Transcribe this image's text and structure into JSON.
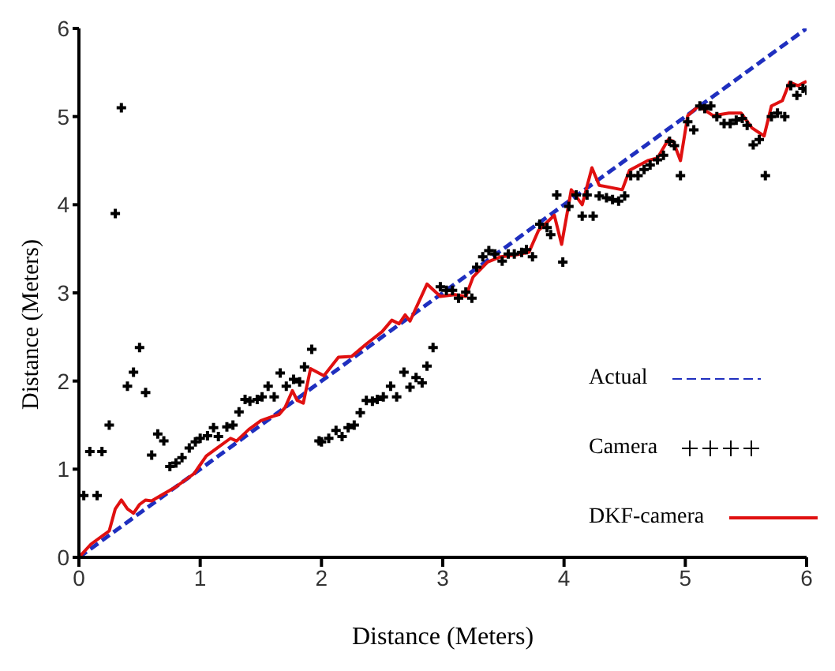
{
  "chart_data": {
    "type": "line",
    "xlabel": "Distance (Meters)",
    "ylabel": "Distance (Meters)",
    "xlim": [
      0,
      6
    ],
    "ylim": [
      0,
      6
    ],
    "xticks": [
      0,
      1,
      2,
      3,
      4,
      5,
      6
    ],
    "yticks": [
      0,
      1,
      2,
      3,
      4,
      5,
      6
    ],
    "grid": false,
    "legend": "bottom right",
    "series": [
      {
        "name": "Actual",
        "type": "line",
        "color": "#1f2fbf",
        "line_style": "dashed",
        "marker": "none",
        "x": [
          0,
          6
        ],
        "values": [
          0,
          6
        ]
      },
      {
        "name": "Camera",
        "type": "scatter",
        "color": "#000000",
        "marker": "cross",
        "x": [
          0.04,
          0.09,
          0.15,
          0.19,
          0.25,
          0.3,
          0.35,
          0.4,
          0.45,
          0.5,
          0.55,
          0.6,
          0.65,
          0.7,
          0.75,
          0.8,
          0.85,
          0.91,
          0.96,
          1.0,
          1.06,
          1.11,
          1.15,
          1.22,
          1.27,
          1.32,
          1.37,
          1.41,
          1.47,
          1.51,
          1.56,
          1.61,
          1.66,
          1.71,
          1.77,
          1.82,
          1.86,
          1.92,
          1.98,
          2.0,
          2.06,
          2.12,
          2.17,
          2.22,
          2.27,
          2.32,
          2.37,
          2.42,
          2.46,
          2.51,
          2.57,
          2.62,
          2.68,
          2.73,
          2.78,
          2.83,
          2.87,
          2.92,
          2.98,
          3.03,
          3.08,
          3.13,
          3.19,
          3.24,
          3.28,
          3.33,
          3.38,
          3.43,
          3.49,
          3.54,
          3.59,
          3.65,
          3.69,
          3.74,
          3.8,
          3.86,
          3.89,
          3.94,
          3.99,
          4.04,
          4.1,
          4.15,
          4.19,
          4.24,
          4.29,
          4.35,
          4.4,
          4.45,
          4.5,
          4.55,
          4.61,
          4.66,
          4.71,
          4.77,
          4.82,
          4.87,
          4.91,
          4.96,
          5.02,
          5.07,
          5.12,
          5.16,
          5.21,
          5.26,
          5.32,
          5.37,
          5.42,
          5.47,
          5.51,
          5.56,
          5.61,
          5.66,
          5.71,
          5.76,
          5.82,
          5.87,
          5.92,
          5.97,
          6.0
        ],
        "values": [
          0.7,
          1.2,
          0.7,
          1.2,
          1.5,
          3.9,
          5.1,
          1.94,
          2.1,
          2.38,
          1.87,
          1.16,
          1.4,
          1.32,
          1.03,
          1.07,
          1.13,
          1.24,
          1.31,
          1.35,
          1.38,
          1.47,
          1.37,
          1.48,
          1.5,
          1.65,
          1.79,
          1.77,
          1.79,
          1.82,
          1.94,
          1.82,
          2.09,
          1.94,
          2.02,
          1.99,
          2.16,
          2.36,
          1.32,
          1.31,
          1.35,
          1.44,
          1.37,
          1.47,
          1.5,
          1.64,
          1.78,
          1.77,
          1.79,
          1.82,
          1.94,
          1.82,
          2.1,
          1.93,
          2.04,
          1.98,
          2.17,
          2.38,
          3.07,
          3.03,
          3.03,
          2.94,
          3.01,
          2.94,
          3.29,
          3.41,
          3.48,
          3.44,
          3.36,
          3.44,
          3.44,
          3.46,
          3.49,
          3.41,
          3.78,
          3.74,
          3.66,
          4.11,
          3.35,
          3.98,
          4.11,
          3.87,
          4.11,
          3.87,
          4.1,
          4.08,
          4.06,
          4.04,
          4.1,
          4.33,
          4.33,
          4.4,
          4.45,
          4.51,
          4.56,
          4.72,
          4.67,
          4.33,
          4.94,
          4.85,
          5.12,
          5.09,
          5.12,
          5.0,
          4.92,
          4.92,
          4.96,
          4.98,
          4.9,
          4.68,
          4.74,
          4.33,
          5.0,
          5.04,
          5.0,
          5.35,
          5.24,
          5.32,
          5.3
        ]
      },
      {
        "name": "DKF-camera",
        "type": "line",
        "color": "#e01010",
        "line_style": "solid",
        "marker": "none",
        "x": [
          0,
          0.1,
          0.2,
          0.25,
          0.3,
          0.35,
          0.4,
          0.45,
          0.5,
          0.55,
          0.6,
          0.7,
          0.8,
          0.9,
          0.95,
          1.0,
          1.05,
          1.15,
          1.25,
          1.3,
          1.4,
          1.5,
          1.6,
          1.65,
          1.7,
          1.76,
          1.8,
          1.85,
          1.91,
          2.02,
          2.14,
          2.25,
          2.37,
          2.5,
          2.58,
          2.64,
          2.69,
          2.73,
          2.87,
          2.98,
          3.1,
          3.19,
          3.25,
          3.37,
          3.48,
          3.6,
          3.71,
          3.79,
          3.92,
          3.98,
          4.06,
          4.15,
          4.23,
          4.29,
          4.48,
          4.54,
          4.69,
          4.77,
          4.86,
          4.9,
          4.96,
          5.02,
          5.11,
          5.23,
          5.36,
          5.46,
          5.55,
          5.65,
          5.71,
          5.8,
          5.86,
          5.93,
          6.0
        ],
        "values": [
          0,
          0.15,
          0.25,
          0.3,
          0.55,
          0.65,
          0.55,
          0.5,
          0.6,
          0.65,
          0.64,
          0.72,
          0.8,
          0.9,
          0.95,
          1.05,
          1.15,
          1.25,
          1.35,
          1.32,
          1.45,
          1.55,
          1.6,
          1.62,
          1.7,
          1.89,
          1.78,
          1.75,
          2.14,
          2.06,
          2.27,
          2.28,
          2.42,
          2.56,
          2.69,
          2.65,
          2.75,
          2.68,
          3.1,
          2.96,
          2.98,
          2.96,
          3.18,
          3.35,
          3.41,
          3.43,
          3.46,
          3.71,
          3.88,
          3.55,
          4.17,
          4.0,
          4.42,
          4.22,
          4.17,
          4.39,
          4.5,
          4.53,
          4.74,
          4.72,
          4.5,
          5.01,
          5.12,
          5.01,
          5.04,
          5.04,
          4.87,
          4.78,
          5.12,
          5.18,
          5.39,
          5.35,
          5.4
        ]
      }
    ]
  }
}
